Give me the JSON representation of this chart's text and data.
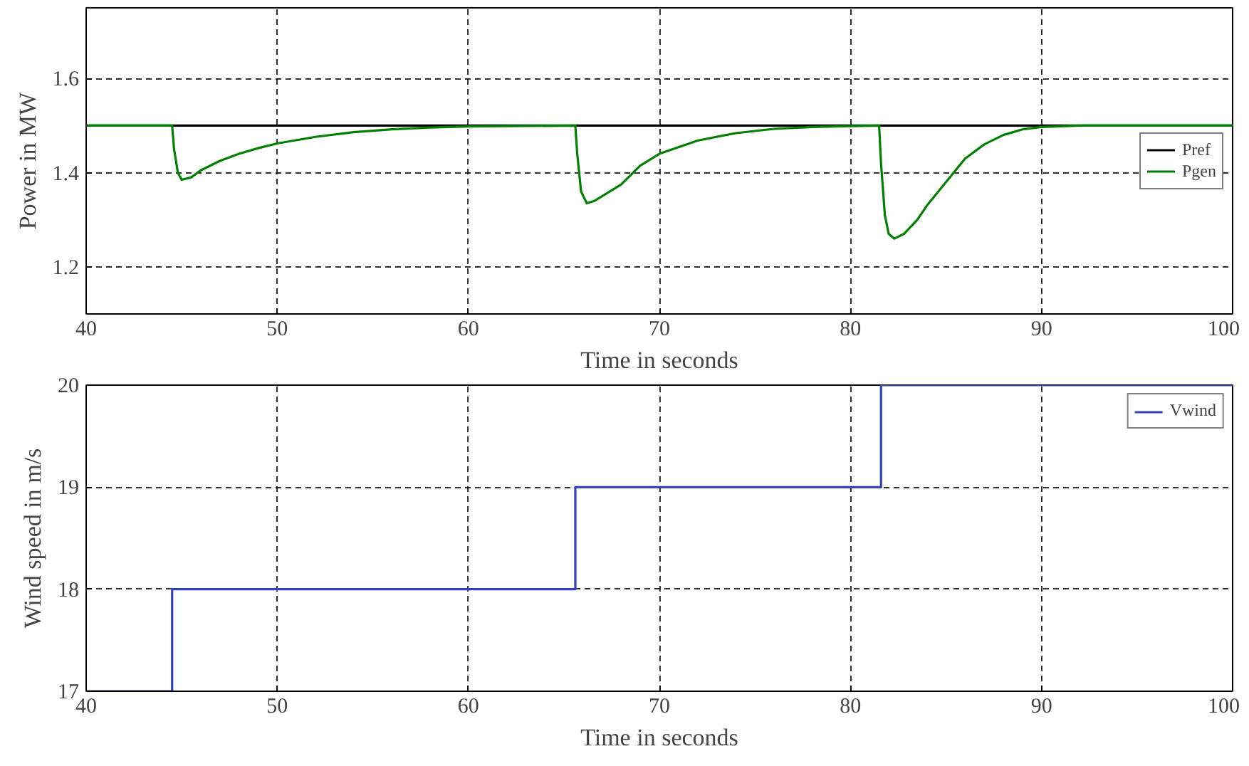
{
  "chart_data": [
    {
      "type": "line",
      "xlabel": "Time in seconds",
      "ylabel": "Power in MW",
      "xlim": [
        40,
        100
      ],
      "ylim": [
        1.1,
        1.75
      ],
      "xticks": [
        40,
        50,
        60,
        70,
        80,
        90,
        100
      ],
      "yticks": [
        1.2,
        1.4,
        1.6
      ],
      "grid": true,
      "legend": "right",
      "series": [
        {
          "name": "Pref",
          "color": "#000000",
          "x": [
            40,
            100
          ],
          "values": [
            1.5,
            1.5
          ]
        },
        {
          "name": "Pgen",
          "color": "#008000",
          "x": [
            40,
            44.5,
            44.6,
            44.8,
            45.0,
            45.5,
            46,
            47,
            48,
            49,
            50,
            52,
            54,
            56,
            58,
            60,
            65.6,
            65.7,
            65.9,
            66.2,
            66.6,
            67,
            68,
            69,
            70,
            72,
            74,
            76,
            78,
            80,
            81.5,
            81.6,
            81.8,
            82.0,
            82.3,
            82.8,
            83.5,
            84,
            85,
            86,
            87,
            88,
            89,
            90,
            92,
            100
          ],
          "values": [
            1.5,
            1.5,
            1.45,
            1.4,
            1.385,
            1.39,
            1.405,
            1.425,
            1.44,
            1.452,
            1.462,
            1.476,
            1.486,
            1.492,
            1.496,
            1.498,
            1.5,
            1.44,
            1.36,
            1.335,
            1.34,
            1.35,
            1.375,
            1.415,
            1.44,
            1.468,
            1.484,
            1.493,
            1.497,
            1.499,
            1.5,
            1.42,
            1.31,
            1.27,
            1.26,
            1.27,
            1.3,
            1.33,
            1.38,
            1.43,
            1.46,
            1.48,
            1.492,
            1.497,
            1.5,
            1.5
          ]
        }
      ]
    },
    {
      "type": "step",
      "xlabel": "Time in seconds",
      "ylabel": "Wind speed in m/s",
      "xlim": [
        40,
        100
      ],
      "ylim": [
        17,
        20
      ],
      "xticks": [
        40,
        50,
        60,
        70,
        80,
        90,
        100
      ],
      "yticks": [
        17,
        18,
        19,
        20
      ],
      "grid": true,
      "legend": "top right",
      "series": [
        {
          "name": "Vwind",
          "color": "#3344bb",
          "x": [
            40,
            44.5,
            65.6,
            81.6,
            100
          ],
          "values": [
            17,
            18,
            19,
            20,
            20
          ]
        }
      ]
    }
  ]
}
